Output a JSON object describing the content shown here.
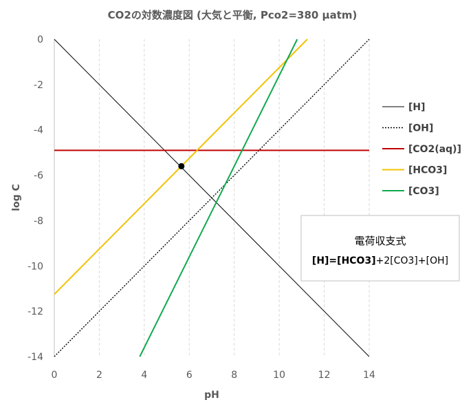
{
  "chart_data": {
    "type": "line",
    "title": "CO2の対数濃度図 (大気と平衡, Pco2=380 µatm)",
    "xlabel": "pH",
    "ylabel": "log C",
    "xlim": [
      0,
      14
    ],
    "ylim": [
      -14,
      0
    ],
    "x_ticks": [
      "0",
      "2",
      "4",
      "6",
      "8",
      "10",
      "12",
      "14"
    ],
    "y_ticks": [
      "0",
      "-2",
      "-4",
      "-6",
      "-8",
      "-10",
      "-12",
      "-14"
    ],
    "grid": {
      "vertical": "dashed",
      "horizontal": "none"
    },
    "legend_position": "right",
    "series": [
      {
        "name": "[H]",
        "color": "#000000",
        "style": "solid",
        "x": [
          0,
          14
        ],
        "y": [
          0,
          -14
        ]
      },
      {
        "name": "[OH]",
        "color": "#000000",
        "style": "dotted",
        "x": [
          0,
          14
        ],
        "y": [
          -14,
          0
        ]
      },
      {
        "name": "[CO2(aq)]",
        "color": "#c00000",
        "style": "solid",
        "x": [
          0,
          14
        ],
        "y": [
          -4.9,
          -4.9
        ]
      },
      {
        "name": "[HCO3]",
        "color": "#f2c200",
        "style": "solid",
        "x": [
          0,
          11.25
        ],
        "y": [
          -11.25,
          0
        ]
      },
      {
        "name": "[CO3]",
        "color": "#12a84f",
        "style": "solid",
        "x": [
          3.8,
          10.8
        ],
        "y": [
          -14,
          0
        ]
      }
    ],
    "points": [
      {
        "x": 5.65,
        "y": -5.6,
        "color": "#000000"
      }
    ],
    "annotation": {
      "title": "電荷収支式",
      "equation_bold": "[H]=[HCO3]",
      "equation_rest": "+2[CO3]+[OH]"
    }
  }
}
